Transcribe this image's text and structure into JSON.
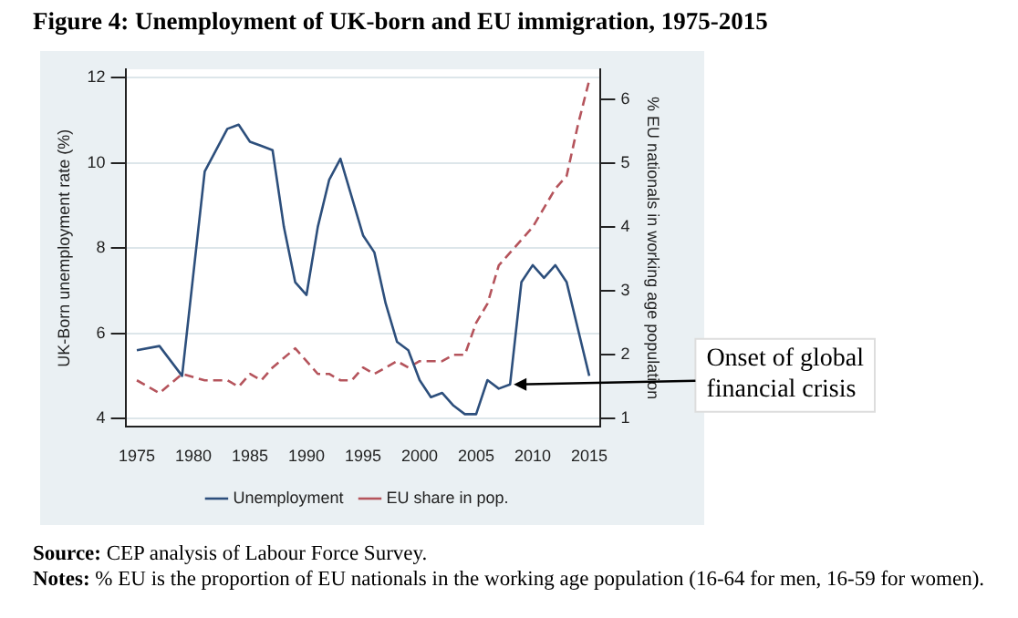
{
  "chart_data": {
    "type": "line",
    "title": "Figure 4: Unemployment of UK-born and EU immigration, 1975-2015",
    "ylabel": "UK-Born unemployment rate (%)",
    "y2label": "% EU nationals in working age population",
    "series": [
      {
        "name": "Unemployment",
        "color": "#2d4f7c",
        "line_style": "solid",
        "x": [
          1975,
          1977,
          1979,
          1981,
          1983,
          1984,
          1985,
          1986,
          1987,
          1988,
          1989,
          1990,
          1991,
          1992,
          1993,
          1994,
          1995,
          1996,
          1997,
          1998,
          1999,
          2000,
          2001,
          2002,
          2003,
          2004,
          2005,
          2006,
          2007,
          2008,
          2009,
          2010,
          2011,
          2012,
          2013,
          2014,
          2015
        ],
        "values": [
          5.6,
          5.7,
          5.0,
          9.8,
          10.8,
          10.9,
          10.5,
          10.4,
          10.3,
          8.5,
          7.2,
          6.9,
          8.5,
          9.6,
          10.1,
          9.2,
          8.3,
          7.9,
          6.7,
          5.8,
          5.6,
          4.9,
          4.5,
          4.6,
          4.3,
          4.1,
          4.1,
          4.9,
          4.7,
          4.8,
          7.2,
          7.6,
          7.3,
          7.6,
          7.2,
          6.1,
          5.0
        ]
      },
      {
        "name": "EU share in pop.",
        "color": "#b5545c",
        "line_style": "dashed",
        "axis": "y2",
        "x": [
          1975,
          1977,
          1979,
          1981,
          1983,
          1984,
          1985,
          1986,
          1987,
          1989,
          1990,
          1991,
          1992,
          1993,
          1994,
          1995,
          1996,
          1997,
          1998,
          1999,
          2000,
          2001,
          2002,
          2003,
          2004,
          2005,
          2006,
          2007,
          2008,
          2009,
          2010,
          2011,
          2012,
          2013,
          2014,
          2015
        ],
        "values": [
          1.6,
          1.4,
          1.7,
          1.6,
          1.6,
          1.5,
          1.7,
          1.6,
          1.8,
          2.1,
          1.9,
          1.7,
          1.7,
          1.6,
          1.6,
          1.8,
          1.7,
          1.8,
          1.9,
          1.8,
          1.9,
          1.9,
          1.9,
          2.0,
          2.0,
          2.5,
          2.8,
          3.4,
          3.6,
          3.8,
          4.0,
          4.3,
          4.6,
          4.8,
          5.6,
          6.3
        ]
      }
    ],
    "xlim": [
      1974,
      2016
    ],
    "xticks": [
      1975,
      1980,
      1985,
      1990,
      1995,
      2000,
      2005,
      2010,
      2015
    ],
    "ylim": [
      3.8,
      12.2
    ],
    "yticks": [
      4,
      6,
      8,
      10,
      12
    ],
    "y2lim": [
      0.87,
      6.47
    ],
    "y2ticks": [
      1,
      2,
      3,
      4,
      5,
      6
    ],
    "grid": "y",
    "legend": "bottom",
    "marker": "none",
    "annotations": [
      {
        "text": "Onset of global financial crisis",
        "x": 2008,
        "y": 4.8
      },
      "Source: CEP analysis of Labour Force Survey.",
      "Notes: % EU is the proportion of EU nationals in the working age population (16-64 for men, 16-59 for women)."
    ]
  }
}
